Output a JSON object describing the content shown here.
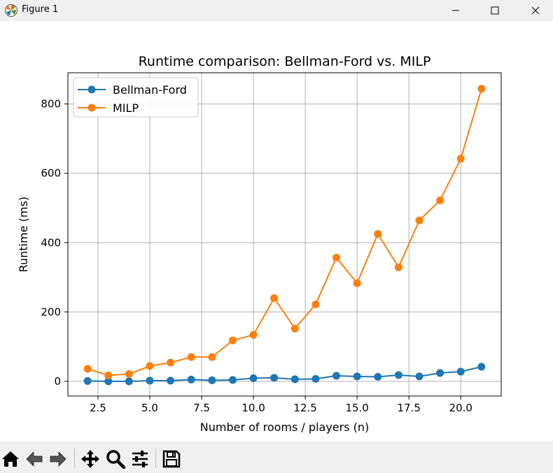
{
  "window": {
    "title": "Figure 1",
    "controls": {
      "minimize": "minimize-icon",
      "maximize": "maximize-icon",
      "close": "close-icon"
    }
  },
  "toolbar": {
    "buttons": [
      {
        "name": "home",
        "icon": "home-icon"
      },
      {
        "name": "back",
        "icon": "back-arrow-icon"
      },
      {
        "name": "forward",
        "icon": "forward-arrow-icon"
      },
      {
        "name": "pan",
        "icon": "move-icon"
      },
      {
        "name": "zoom",
        "icon": "zoom-icon"
      },
      {
        "name": "configure-subplots",
        "icon": "sliders-icon"
      },
      {
        "name": "save",
        "icon": "save-icon"
      }
    ]
  },
  "chart_data": {
    "type": "line",
    "title": "Runtime comparison: Bellman-Ford vs. MILP",
    "xlabel": "Number of rooms / players (n)",
    "ylabel": "Runtime (ms)",
    "xlim": [
      1.05,
      21.95
    ],
    "ylim": [
      -42.5,
      890
    ],
    "xticks": [
      2.5,
      5.0,
      7.5,
      10.0,
      12.5,
      15.0,
      17.5,
      20.0
    ],
    "xtick_labels": [
      "2.5",
      "5.0",
      "7.5",
      "10.0",
      "12.5",
      "15.0",
      "17.5",
      "20.0"
    ],
    "yticks": [
      0,
      200,
      400,
      600,
      800
    ],
    "ytick_labels": [
      "0",
      "200",
      "400",
      "600",
      "800"
    ],
    "grid": true,
    "legend_position": "upper-left",
    "x": [
      2,
      3,
      4,
      5,
      6,
      7,
      8,
      9,
      10,
      11,
      12,
      13,
      14,
      15,
      16,
      17,
      18,
      19,
      20,
      21
    ],
    "series": [
      {
        "name": "Bellman-Ford",
        "color": "#1f77b4",
        "marker": "circle",
        "values": [
          1,
          0,
          0,
          2,
          2,
          5,
          3,
          4,
          9,
          10,
          6,
          7,
          16,
          14,
          13,
          18,
          14,
          24,
          28,
          42
        ]
      },
      {
        "name": "MILP",
        "color": "#ff7f0e",
        "marker": "circle",
        "values": [
          36,
          17,
          21,
          44,
          54,
          70,
          70,
          118,
          134,
          240,
          152,
          222,
          357,
          283,
          425,
          329,
          464,
          522,
          642,
          844
        ]
      }
    ]
  }
}
